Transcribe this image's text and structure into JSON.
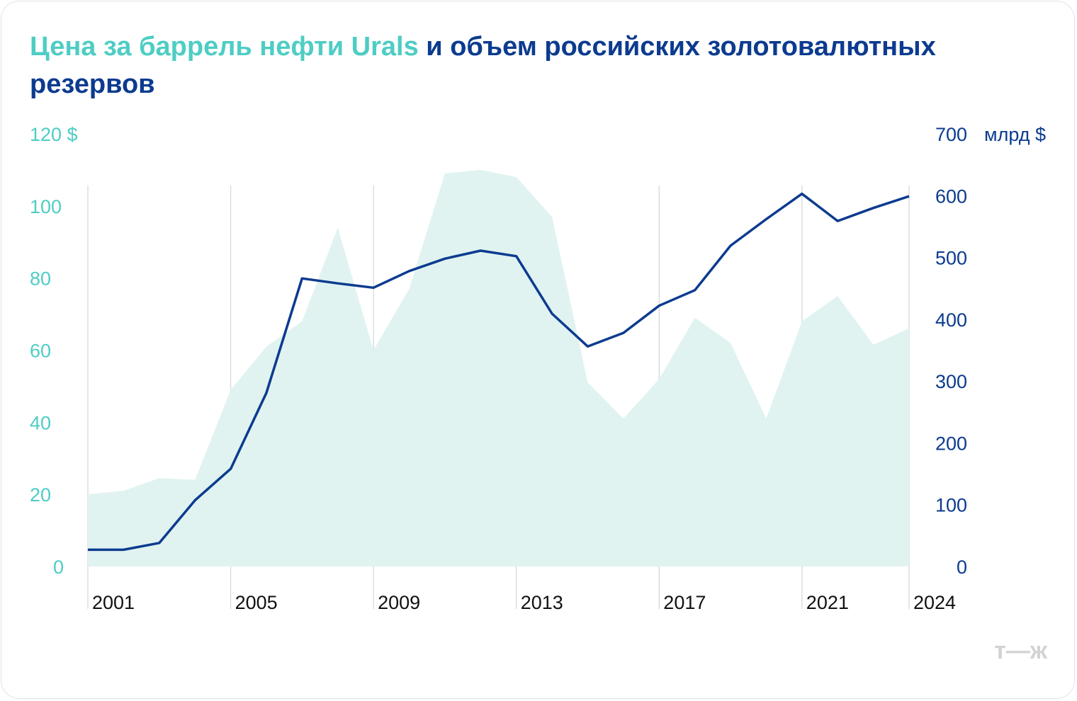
{
  "title": {
    "part1": "Цена за баррель нефти Urals",
    "part2": "и объем российских золотовалютных резервов"
  },
  "logo": "т—ж",
  "colors": {
    "oil": "#4ecdc4",
    "oil_fill": "#e0f3f1",
    "reserves": "#0c3b8f",
    "grid": "#d5dada"
  },
  "chart_data": {
    "type": "area+line",
    "title": "Цена за баррель нефти Urals и объем российских золотовалютных резервов",
    "left_axis": {
      "unit": "$",
      "ticks": [
        "120 $",
        "100",
        "80",
        "60",
        "40",
        "20",
        "0"
      ],
      "ylim": [
        0,
        120
      ]
    },
    "right_axis": {
      "unit": "млрд $",
      "ticks": [
        "700",
        "600",
        "500",
        "400",
        "300",
        "200",
        "100",
        "0"
      ],
      "ylim": [
        0,
        700
      ]
    },
    "x_ticks": [
      "2001",
      "2005",
      "2009",
      "2013",
      "2017",
      "2021",
      "2024"
    ],
    "x": [
      2001,
      2002,
      2003,
      2004,
      2005,
      2006,
      2007,
      2008,
      2009,
      2010,
      2011,
      2012,
      2013,
      2014,
      2015,
      2016,
      2017,
      2018,
      2019,
      2020,
      2021,
      2022,
      2023,
      2024
    ],
    "series": [
      {
        "name": "Цена за баррель нефти Urals",
        "axis": "left",
        "style": "area",
        "values": [
          20,
          21,
          24.5,
          24,
          49,
          61,
          68,
          94,
          60,
          77,
          109,
          110,
          108,
          97,
          51,
          41,
          52,
          69,
          62,
          41,
          68,
          75,
          61.5,
          66
        ]
      },
      {
        "name": "Золотовалютные резервы",
        "axis": "right",
        "style": "line",
        "values": [
          27,
          27,
          38,
          107,
          158,
          281,
          466,
          458,
          451,
          478,
          498,
          511,
          502,
          409,
          356,
          378,
          422,
          447,
          519,
          562,
          603,
          559,
          580,
          599
        ]
      }
    ],
    "grid": "vertical lines at labeled years",
    "legend": "none (series named by colored title text)"
  }
}
